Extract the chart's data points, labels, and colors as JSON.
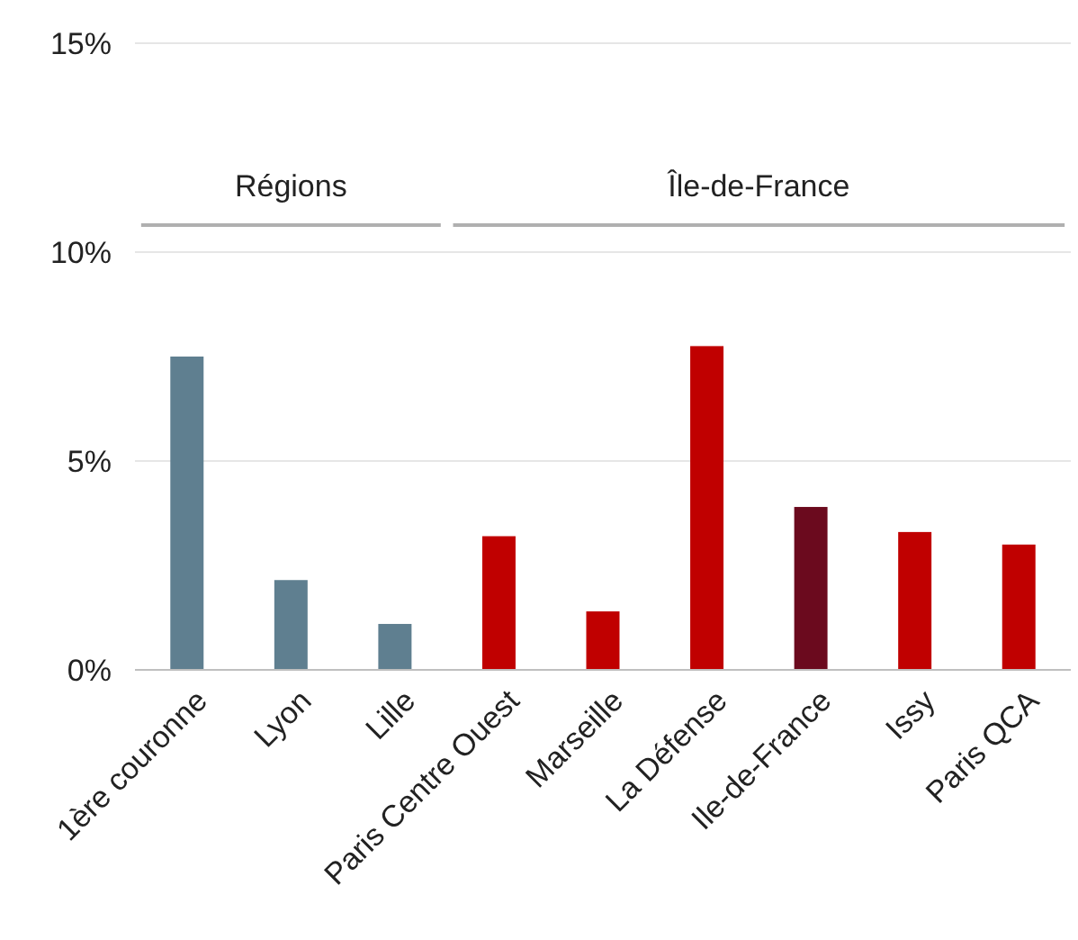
{
  "chart_data": {
    "type": "bar",
    "categories": [
      "1ère couronne",
      "Lyon",
      "Lille",
      "Paris Centre Ouest",
      "Marseille",
      "La Défense",
      "Ile-de-France",
      "Issy",
      "Paris QCA"
    ],
    "values": [
      7.5,
      2.15,
      1.1,
      3.2,
      1.4,
      7.75,
      3.9,
      3.3,
      3.0
    ],
    "colors": [
      "#5f7f90",
      "#5f7f90",
      "#5f7f90",
      "#c00000",
      "#c00000",
      "#c00000",
      "#6b0a1e",
      "#c00000",
      "#c00000"
    ],
    "ylim": [
      0,
      15
    ],
    "yticks": [
      {
        "value": 0,
        "label": "0%"
      },
      {
        "value": 5,
        "label": "5%"
      },
      {
        "value": 10,
        "label": "10%"
      },
      {
        "value": 15,
        "label": "15%"
      }
    ],
    "grid": "y",
    "annotations": [
      "Régions",
      "Île-de-France"
    ]
  }
}
